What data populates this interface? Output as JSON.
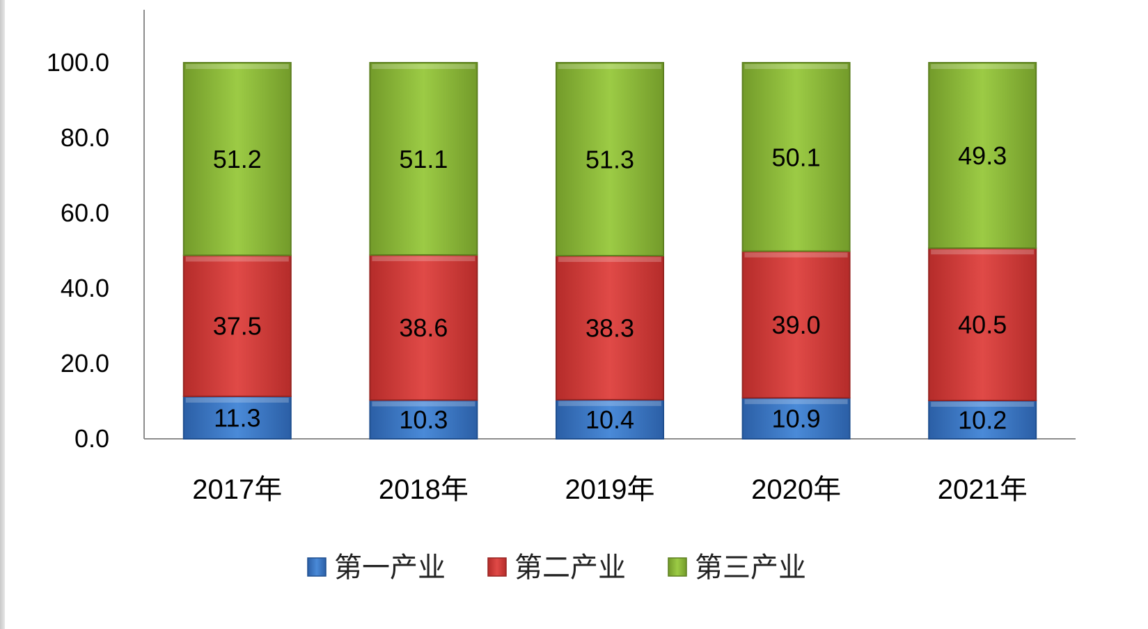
{
  "chart_data": {
    "type": "bar",
    "stacked": true,
    "title": "",
    "xlabel": "",
    "ylabel": "",
    "categories": [
      "2017年",
      "2018年",
      "2019年",
      "2020年",
      "2021年"
    ],
    "series": [
      {
        "name": "第一产业",
        "values": [
          11.3,
          10.3,
          10.4,
          10.9,
          10.2
        ],
        "value_labels": [
          "11.3",
          "10.3",
          "10.4",
          "10.9",
          "10.2"
        ],
        "color": "#3b78c8"
      },
      {
        "name": "第二产业",
        "values": [
          37.5,
          38.6,
          38.3,
          39.0,
          40.5
        ],
        "value_labels": [
          "37.5",
          "38.6",
          "38.3",
          "39.0",
          "40.5"
        ],
        "color": "#d63a38"
      },
      {
        "name": "第三产业",
        "values": [
          51.2,
          51.1,
          51.3,
          50.1,
          49.3
        ],
        "value_labels": [
          "51.2",
          "51.1",
          "51.3",
          "50.1",
          "49.3"
        ],
        "color": "#8ebd3a"
      }
    ],
    "ylim": [
      0,
      100
    ],
    "yticks": [
      0,
      20,
      40,
      60,
      80,
      100
    ],
    "ytick_labels": [
      "0.0",
      "20.0",
      "40.0",
      "60.0",
      "80.0",
      "100.0"
    ],
    "grid": false,
    "legend_position": "bottom"
  }
}
